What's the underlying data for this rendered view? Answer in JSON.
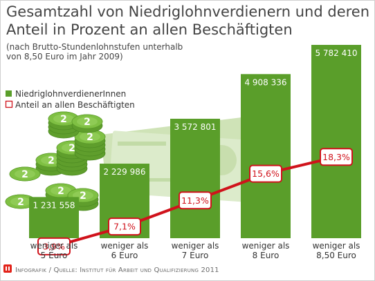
{
  "chart_data": {
    "type": "bar",
    "title": "Gesamtzahl von Niedriglohnverdienern und deren Anteil in Prozent an allen Beschäftigten",
    "title_lines": [
      "Gesamtzahl von Niedriglohnverdienern und deren",
      "Anteil in Prozent an allen Beschäftigten"
    ],
    "subtitle_lines": [
      "(nach Brutto-Stundenlohnstufen unterhalb",
      "von 8,50 Euro im Jahr 2009)"
    ],
    "categories": [
      [
        "weniger als",
        "5 Euro"
      ],
      [
        "weniger als",
        "6 Euro"
      ],
      [
        "weniger als",
        "7 Euro"
      ],
      [
        "weniger als",
        "8 Euro"
      ],
      [
        "weniger als",
        "8,50 Euro"
      ]
    ],
    "series": [
      {
        "name": "NiedriglohnverdienerInnen",
        "kind": "bar",
        "color": "#5a9e2a",
        "values": [
          1231558,
          2229986,
          3572801,
          4908336,
          5782410
        ],
        "labels": [
          "1 231 558",
          "2 229 986",
          "3 572 801",
          "4 908 336",
          "5 782 410"
        ]
      },
      {
        "name": "Anteil an allen Beschäftigten",
        "kind": "line",
        "color": "#d0121b",
        "values": [
          3.9,
          7.1,
          11.3,
          15.6,
          18.3
        ],
        "labels": [
          "3,9%",
          "7,1%",
          "11,3%",
          "15,6%",
          "18,3%"
        ]
      }
    ],
    "legend": {
      "position": "left",
      "items": [
        "NiedriglohnverdienerInnen",
        "Anteil an allen Beschäftigten"
      ]
    },
    "grid": false
  },
  "footer": "Infografik / Quelle: Institut für Arbeit und Qualifizierung 2011",
  "colors": {
    "bar": "#5a9e2a",
    "line": "#d0121b",
    "title": "#444444",
    "coin": "#7fc043",
    "banknote": "#d8e9c6",
    "logo": "#e2231a"
  },
  "decorations": [
    "coin-stack-icon",
    "banknote-icon",
    "logo-icon"
  ]
}
